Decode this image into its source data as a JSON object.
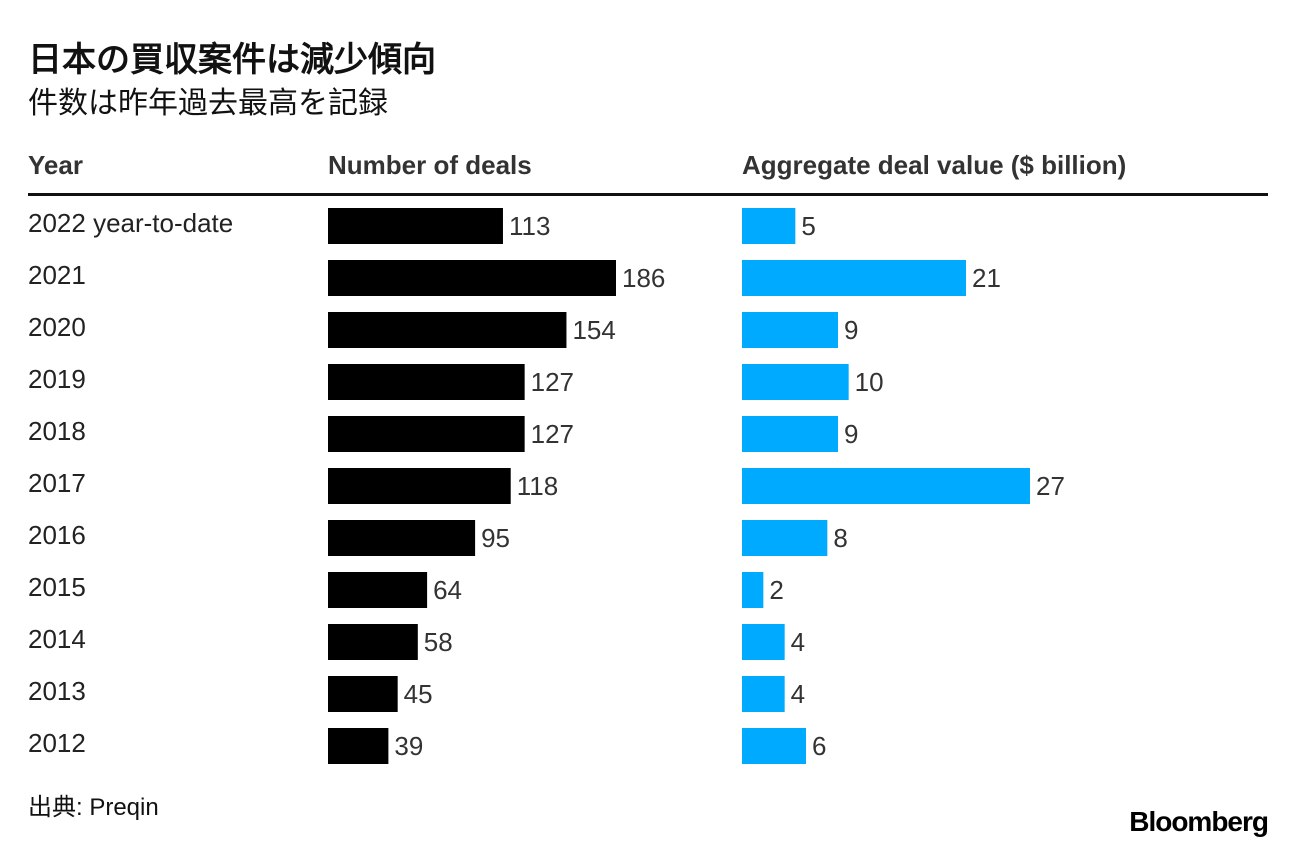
{
  "title": "日本の買収案件は減少傾向",
  "subtitle": "件数は昨年過去最高を記録",
  "headers": {
    "year": "Year",
    "deals": "Number of deals",
    "value": "Aggregate deal value ($ billion)"
  },
  "source": "出典: Preqin",
  "logo": "Bloomberg",
  "colors": {
    "deals_bar": "#000000",
    "value_bar": "#00aaff"
  },
  "chart_data": {
    "type": "bar",
    "orientation": "horizontal",
    "categories": [
      "2022 year-to-date",
      "2021",
      "2020",
      "2019",
      "2018",
      "2017",
      "2016",
      "2015",
      "2014",
      "2013",
      "2012"
    ],
    "series": [
      {
        "name": "Number of deals",
        "values": [
          113,
          186,
          154,
          127,
          127,
          118,
          95,
          64,
          58,
          45,
          39
        ]
      },
      {
        "name": "Aggregate deal value ($ billion)",
        "values": [
          5,
          21,
          9,
          10,
          9,
          27,
          8,
          2,
          4,
          4,
          6
        ]
      }
    ]
  }
}
